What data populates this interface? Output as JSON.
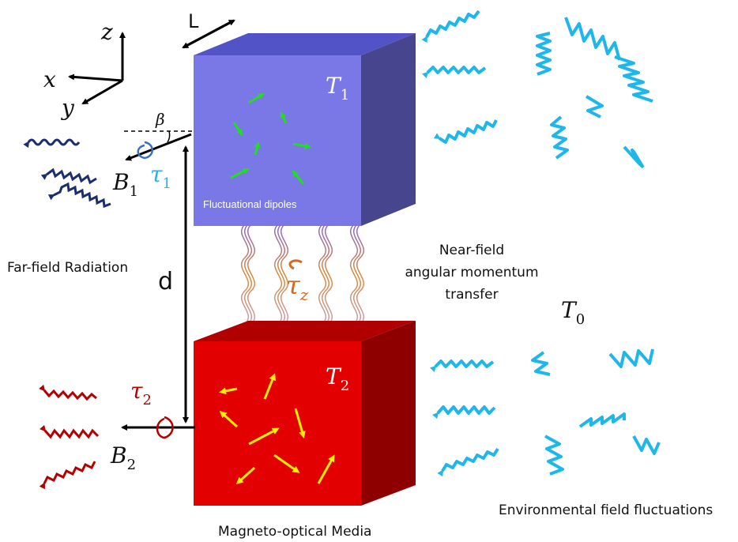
{
  "axes": {
    "z": "z",
    "x": "x",
    "y": "y"
  },
  "top_block": {
    "temperature_label": "T",
    "temperature_sub": "1",
    "caption": "Fluctuational dipoles",
    "face_color": "#7a78e6",
    "top_color": "#5353c8",
    "side_color": "#46458e",
    "arrow_color": "#22dd22"
  },
  "bottom_block": {
    "temperature_label": "T",
    "temperature_sub": "2",
    "caption": "Magneto-optical Media",
    "face_color": "#e20000",
    "top_color": "#b00000",
    "side_color": "#8e0000",
    "arrow_color": "#ffee00"
  },
  "dimension_L": "L",
  "dimension_d": "d",
  "angle_beta": "β",
  "field_B1": {
    "letter": "B",
    "sub": "1"
  },
  "field_B2": {
    "letter": "B",
    "sub": "2"
  },
  "torque_1": {
    "letter": "τ",
    "sub": "1",
    "color": "#29aee8"
  },
  "torque_2": {
    "letter": "τ",
    "sub": "2",
    "color": "#b30000"
  },
  "torque_z": {
    "letter": "τ",
    "sub": "z",
    "color": "#d2691e"
  },
  "far_field_label": "Far-field Radiation",
  "near_field_label": [
    "Near-field",
    "angular momentum",
    "transfer"
  ],
  "env_temperature": {
    "letter": "T",
    "sub": "0"
  },
  "environment_label": "Environmental field fluctuations",
  "colors": {
    "env_wave": "#1fb7ea",
    "far_wave_top": "#1b2f6e",
    "far_wave_bottom": "#b30000"
  }
}
